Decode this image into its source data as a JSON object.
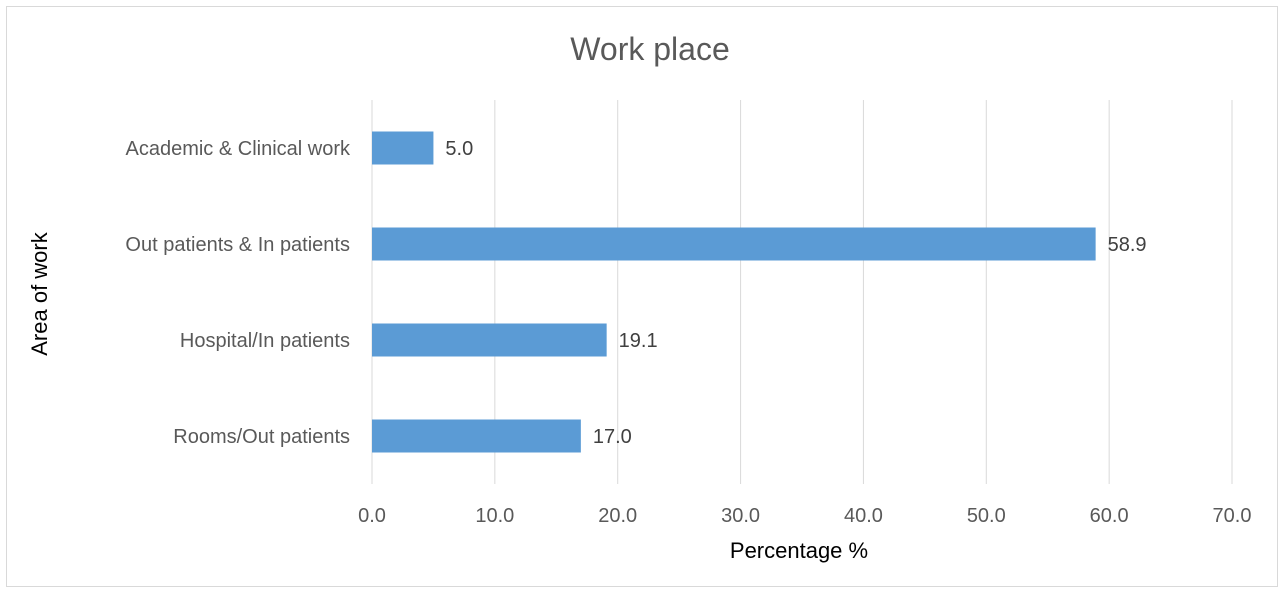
{
  "chart_data": {
    "type": "bar",
    "orientation": "horizontal",
    "title": "Work place",
    "xlabel": "Percentage %",
    "ylabel": "Area of work",
    "categories": [
      "Academic & Clinical work",
      "Out patients & In patients",
      "Hospital/In patients",
      "Rooms/Out patients"
    ],
    "values": [
      5.0,
      58.9,
      19.1,
      17.0
    ],
    "data_labels": [
      "5.0",
      "58.9",
      "19.1",
      "17.0"
    ],
    "xlim": [
      0,
      70
    ],
    "x_ticks": [
      0,
      10,
      20,
      30,
      40,
      50,
      60,
      70
    ],
    "x_tick_labels": [
      "0.0",
      "10.0",
      "20.0",
      "30.0",
      "40.0",
      "50.0",
      "60.0",
      "70.0"
    ],
    "grid": true,
    "legend": "none",
    "colors": {
      "bar": "#5b9bd5",
      "grid": "#d9d9d9"
    }
  }
}
